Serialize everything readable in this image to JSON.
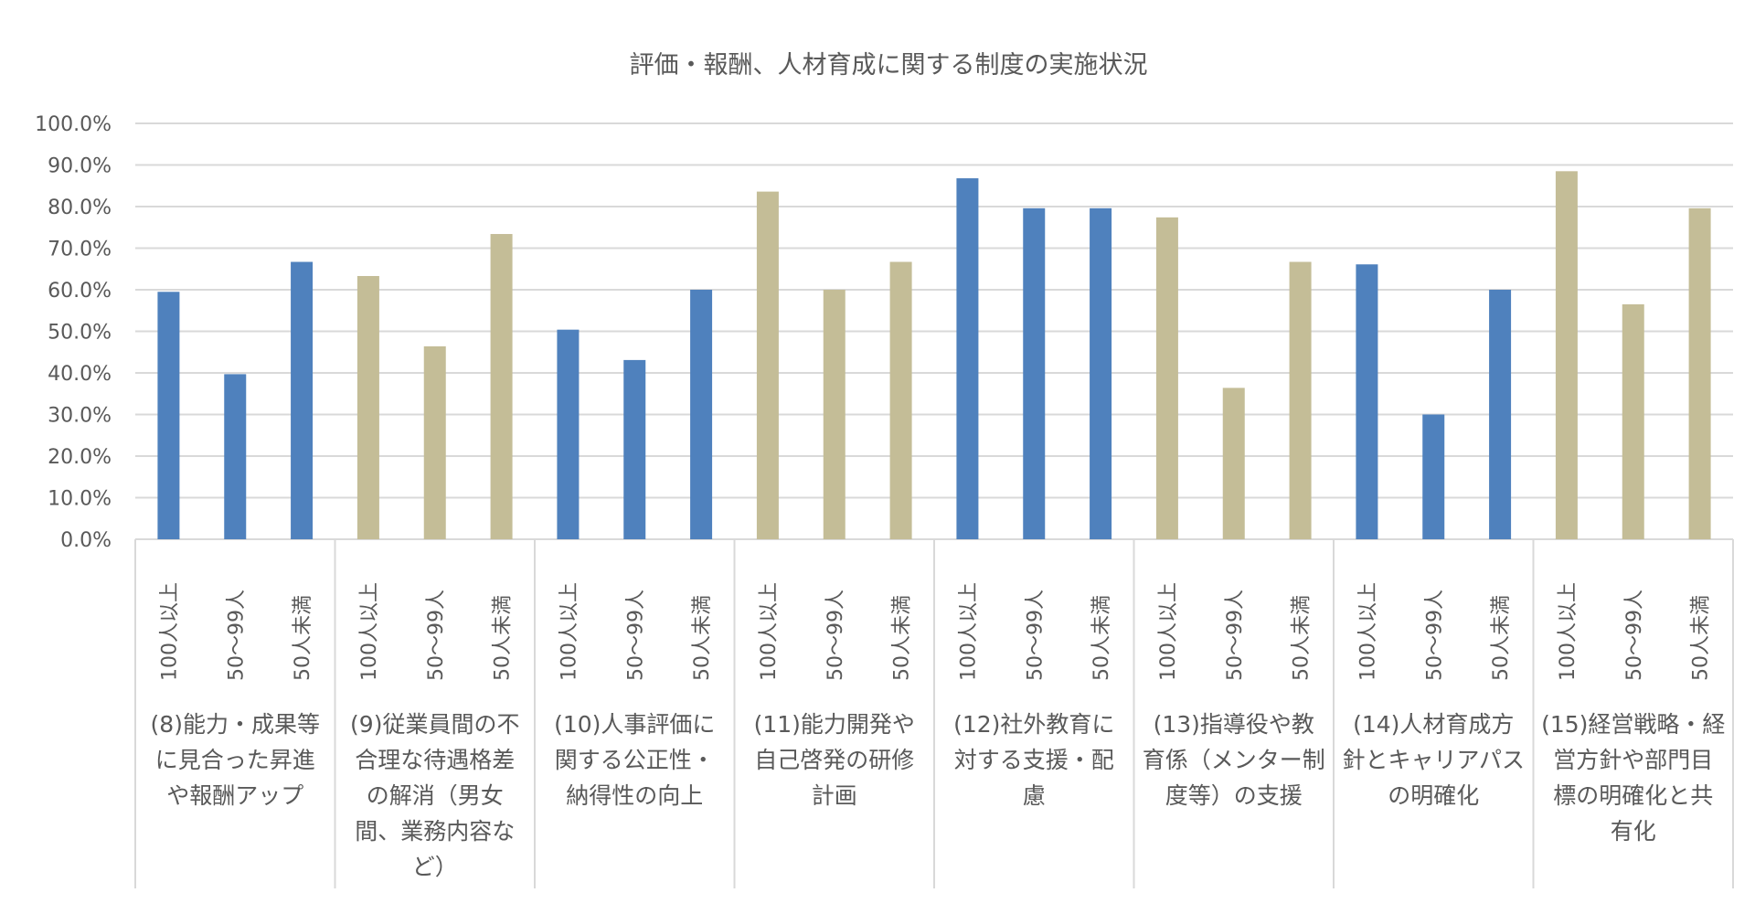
{
  "chart_data": {
    "type": "bar",
    "title": "評価・報酬、人材育成に関する制度の実施状況",
    "xlabel": "",
    "ylabel": "",
    "ylim": [
      0,
      100
    ],
    "yticks": [
      "0.0%",
      "10.0%",
      "20.0%",
      "30.0%",
      "40.0%",
      "50.0%",
      "60.0%",
      "70.0%",
      "80.0%",
      "90.0%",
      "100.0%"
    ],
    "grid": true,
    "legend": "none",
    "sub_categories": [
      "100人以上",
      "50～99人",
      "50人未満"
    ],
    "colors": {
      "blue": "#4F81BD",
      "tan": "#C4BD97",
      "grid": "#D9D9D9",
      "text": "#595959"
    },
    "groups": [
      {
        "label_lines": [
          "(8)能力・成果等",
          "に見合った昇進",
          "や報酬アップ"
        ],
        "color": "blue",
        "values": [
          59.5,
          39.7,
          66.7
        ]
      },
      {
        "label_lines": [
          "(9)従業員間の不",
          "合理な待遇格差",
          "の解消（男女",
          "間、業務内容な",
          "ど）"
        ],
        "color": "tan",
        "values": [
          63.3,
          46.4,
          73.4
        ]
      },
      {
        "label_lines": [
          "(10)人事評価に",
          "関する公正性・",
          "納得性の向上"
        ],
        "color": "blue",
        "values": [
          50.4,
          43.1,
          60.0
        ]
      },
      {
        "label_lines": [
          "(11)能力開発や",
          "自己啓発の研修",
          "計画"
        ],
        "color": "tan",
        "values": [
          83.6,
          60.0,
          66.7
        ]
      },
      {
        "label_lines": [
          "(12)社外教育に",
          "対する支援・配",
          "慮"
        ],
        "color": "blue",
        "values": [
          86.8,
          79.6,
          79.6
        ]
      },
      {
        "label_lines": [
          "(13)指導役や教",
          "育係（メンター制",
          "度等）の支援"
        ],
        "color": "tan",
        "values": [
          77.4,
          36.4,
          66.7
        ]
      },
      {
        "label_lines": [
          "(14)人材育成方",
          "針とキャリアパス",
          "の明確化"
        ],
        "color": "blue",
        "values": [
          66.1,
          30.0,
          60.0
        ]
      },
      {
        "label_lines": [
          "(15)経営戦略・経",
          "営方針や部門目",
          "標の明確化と共",
          "有化"
        ],
        "color": "tan",
        "values": [
          88.5,
          56.5,
          79.6
        ]
      }
    ]
  }
}
